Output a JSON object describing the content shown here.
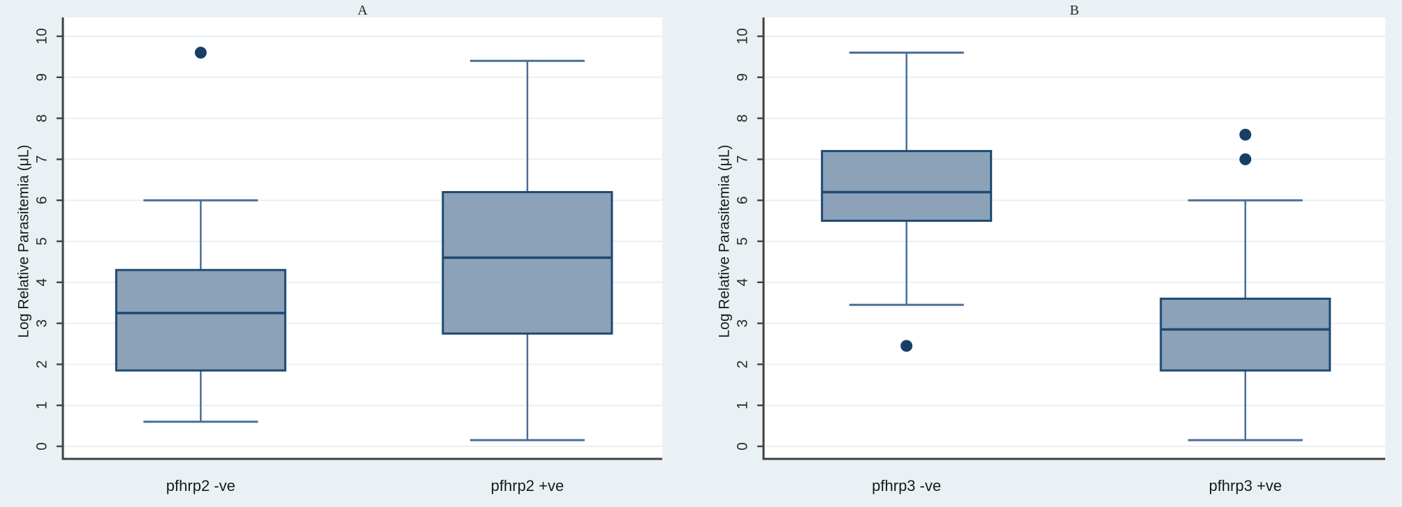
{
  "figure": {
    "description": "Two side-by-side box plots of log relative parasitemia by pfhrp2 and pfhrp3 RDT status"
  },
  "colors": {
    "page_bg": "#eaf1f4",
    "plot_bg": "#ffffff",
    "grid": "#e6f1f5",
    "box_fill": "#8ca2b9",
    "box_border": "#1d4a72",
    "median": "#1d4a72",
    "whisker": "#4a6f94",
    "outlier": "#173f66",
    "axis": "#404040",
    "tick_text": "#2b2b2b",
    "label_text": "#1a1a1a"
  },
  "chart_data": [
    {
      "type": "box",
      "title": "A",
      "ylabel": "Log Relative Parasitemia (μL)",
      "xlabel": "",
      "ylim": [
        0,
        10
      ],
      "yticks": [
        0,
        1,
        2,
        3,
        4,
        5,
        6,
        7,
        8,
        9,
        10
      ],
      "grid": true,
      "legend": "none",
      "categories": [
        "pfhrp2 -ve",
        "pfhrp2 +ve"
      ],
      "boxes": [
        {
          "category": "pfhrp2 -ve",
          "whisker_low": 0.6,
          "q1": 1.85,
          "median": 3.25,
          "q3": 4.3,
          "whisker_high": 6.0,
          "outliers": [
            9.6
          ]
        },
        {
          "category": "pfhrp2 +ve",
          "whisker_low": 0.15,
          "q1": 2.75,
          "median": 4.6,
          "q3": 6.2,
          "whisker_high": 9.4,
          "outliers": []
        }
      ]
    },
    {
      "type": "box",
      "title": "B",
      "ylabel": "Log Relative Parasitemia (μL)",
      "xlabel": "",
      "ylim": [
        0,
        10
      ],
      "yticks": [
        0,
        1,
        2,
        3,
        4,
        5,
        6,
        7,
        8,
        9,
        10
      ],
      "grid": true,
      "legend": "none",
      "categories": [
        "pfhrp3 -ve",
        "pfhrp3 +ve"
      ],
      "boxes": [
        {
          "category": "pfhrp3 -ve",
          "whisker_low": 3.45,
          "q1": 5.5,
          "median": 6.2,
          "q3": 7.2,
          "whisker_high": 9.6,
          "outliers": [
            2.45
          ]
        },
        {
          "category": "pfhrp3 +ve",
          "whisker_low": 0.15,
          "q1": 1.85,
          "median": 2.85,
          "q3": 3.6,
          "whisker_high": 6.0,
          "outliers": [
            7.6,
            7.0
          ]
        }
      ]
    }
  ]
}
